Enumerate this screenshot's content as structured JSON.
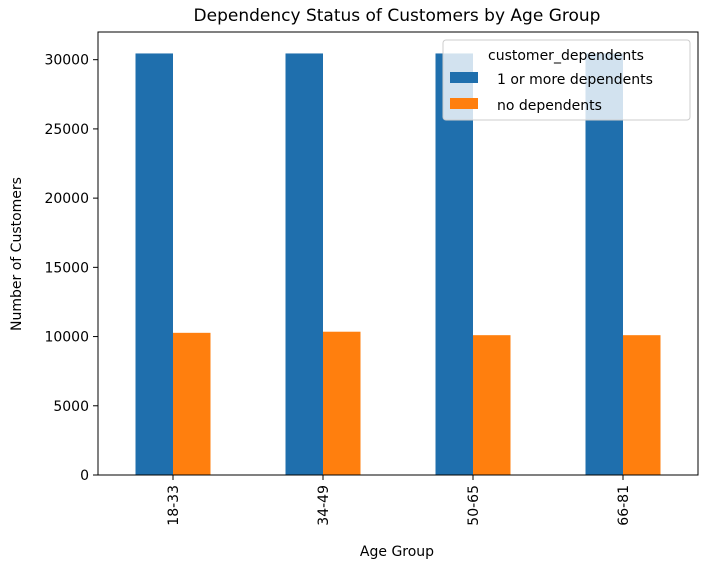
{
  "chart_data": {
    "type": "bar",
    "title": "Dependency Status of Customers by Age Group",
    "xlabel": "Age Group",
    "ylabel": "Number of Customers",
    "categories": [
      "18-33",
      "34-49",
      "50-65",
      "66-81"
    ],
    "series": [
      {
        "name": "1 or more dependents",
        "color": "#1f6fad",
        "values": [
          30450,
          30450,
          30450,
          30450
        ]
      },
      {
        "name": "no dependents",
        "color": "#ff7f0e",
        "values": [
          10270,
          10350,
          10100,
          10100
        ]
      }
    ],
    "yticks": [
      0,
      5000,
      10000,
      15000,
      20000,
      25000,
      30000
    ],
    "ylim": [
      0,
      32000
    ],
    "legend": {
      "title": "customer_dependents",
      "placement": "top-right"
    },
    "grid": false
  }
}
